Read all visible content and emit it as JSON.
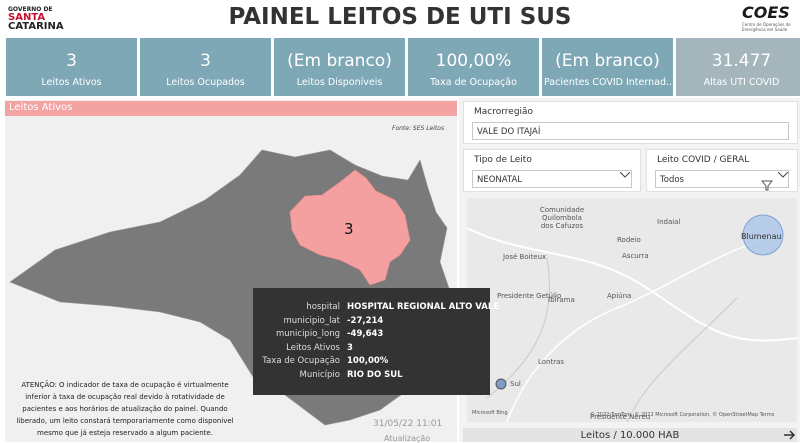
{
  "header": {
    "logo_lines": [
      "GOVERNO DE",
      "SANTA",
      "CATARINA"
    ],
    "title": "PAINEL LEITOS DE UTI SUS",
    "coes_logo": "COES",
    "coes_subtitle": "Centro de Operações de Emergência em Saúde"
  },
  "kpis": [
    {
      "value": "3",
      "label": "Leitos Ativos"
    },
    {
      "value": "3",
      "label": "Leitos Ocupados"
    },
    {
      "value": "(Em branco)",
      "label": "Leitos Disponíveis"
    },
    {
      "value": "100,00%",
      "label": "Taxa de Ocupação"
    },
    {
      "value": "(Em branco)",
      "label": "Pacientes COVID Internad..."
    },
    {
      "value": "31.477",
      "label": "Altas UTI COVID"
    }
  ],
  "map_panel": {
    "title": "Leitos Ativos",
    "source": "Fonte: SES Leitos",
    "region_label": "3",
    "tooltip": [
      {
        "key": "hospital",
        "value": "HOSPITAL REGIONAL ALTO VALE"
      },
      {
        "key": "municipio_lat",
        "value": "-27,214"
      },
      {
        "key": "municipio_long",
        "value": "-49,643"
      },
      {
        "key": "Leitos Ativos",
        "value": "3"
      },
      {
        "key": "Taxa de Ocupação",
        "value": "100,00%"
      },
      {
        "key": "Município",
        "value": "RIO DO SUL"
      }
    ],
    "note": "ATENÇÃO: O indicador de taxa de ocupação é virtualmente inferior à taxa de ocupação real devido à rotatividade de pacientes e aos horários de atualização do painel. Quando liberado, um leito constará temporariamente como disponível mesmo que já esteja reservado a algum paciente.",
    "updated": "31/05/22 11:01",
    "updated_label": "Atualização"
  },
  "filters": [
    {
      "label": "Macrorregião",
      "value": "VALE DO ITAJAÍ"
    },
    {
      "label": "Tipo de Leito",
      "value": "NEONATAL"
    },
    {
      "label": "Leito COVID / GERAL",
      "value": "Todos"
    }
  ],
  "location_map": {
    "places": [
      "Comunidade Quilombola dos Cafuzos",
      "José Boiteux",
      "Rodeio",
      "Ascurra",
      "Indaial",
      "Blumenau",
      "Presidente Getúlio",
      "Ibirama",
      "Apiúna",
      "Lontras",
      "Sul",
      "Presidente Nereu"
    ],
    "attribution": "© 2022 TomTom, © 2022 Microsoft Corporation, © OpenStreetMap Terms",
    "provider": "Microsoft Bing"
  },
  "footer_bar": {
    "label": "Leitos / 10.000 HAB"
  }
}
